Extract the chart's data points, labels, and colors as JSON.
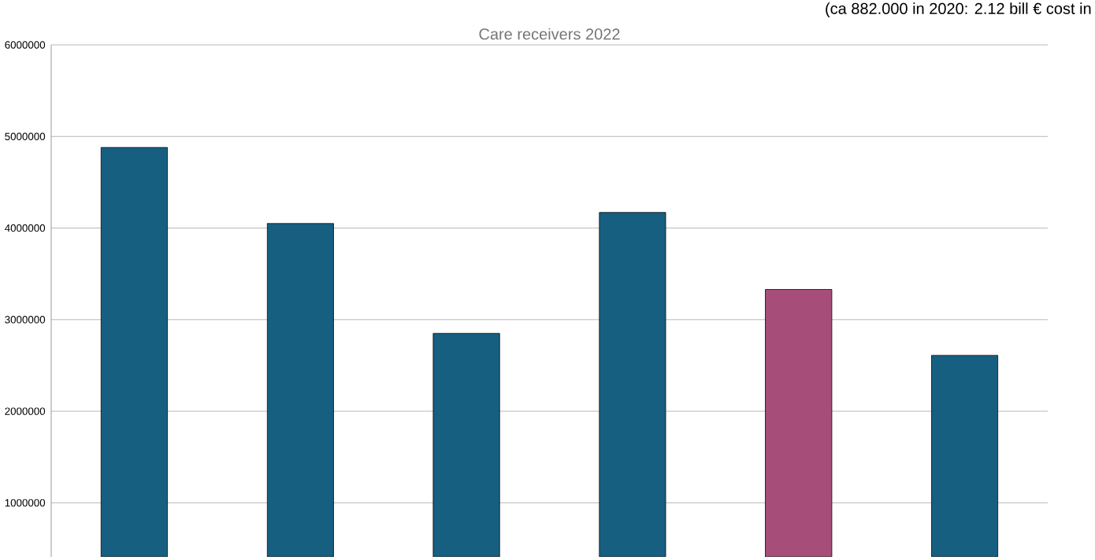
{
  "chart_data": {
    "type": "bar",
    "title": "Care receivers 2022",
    "annotations": [
      "(ca 882.000 in 2020: 2.12 bill € cost in"
    ],
    "categories": [
      null,
      null,
      null,
      null,
      null,
      null
    ],
    "values": [
      4880000,
      4050000,
      2850000,
      4170000,
      3330000,
      2610000
    ],
    "colors": [
      "#175f80",
      "#175f80",
      "#175f80",
      "#175f80",
      "#a64e79",
      "#175f80"
    ],
    "ylim": [
      410000,
      6000000
    ],
    "yticks": [
      1000000,
      2000000,
      3000000,
      4000000,
      5000000,
      6000000
    ],
    "grid": "y",
    "tick_labels": "y"
  }
}
